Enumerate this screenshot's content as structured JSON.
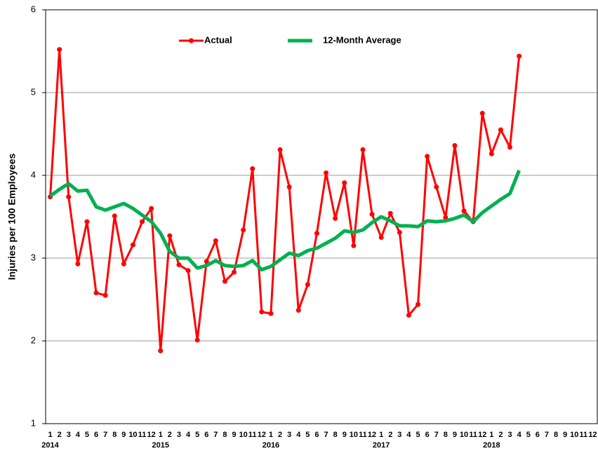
{
  "chart_data": {
    "type": "line",
    "y_label": "Injuries per 100 Employees",
    "categories": [
      "1",
      "2",
      "3",
      "4",
      "5",
      "6",
      "7",
      "8",
      "9",
      "10",
      "11",
      "12",
      "1",
      "2",
      "3",
      "4",
      "5",
      "6",
      "7",
      "8",
      "9",
      "10",
      "11",
      "12",
      "1",
      "2",
      "3",
      "4",
      "5",
      "6",
      "7",
      "8",
      "9",
      "10",
      "11",
      "12",
      "1",
      "2",
      "3",
      "4",
      "5",
      "6",
      "7",
      "8",
      "9",
      "10",
      "11",
      "12",
      "1",
      "2",
      "3",
      "4",
      "5",
      "6",
      "7",
      "8",
      "9",
      "10",
      "11",
      "12"
    ],
    "years": [
      "2014",
      "2015",
      "2016",
      "2017",
      "2018"
    ],
    "series": [
      {
        "name": "Actual",
        "color": "#ff0000",
        "markers": true,
        "values": [
          3.74,
          5.52,
          3.74,
          2.93,
          3.44,
          2.58,
          2.55,
          3.51,
          2.93,
          3.16,
          3.44,
          3.6,
          1.88,
          3.27,
          2.92,
          2.85,
          2.01,
          2.96,
          3.21,
          2.72,
          2.83,
          3.34,
          4.08,
          2.35,
          2.33,
          4.31,
          3.86,
          2.37,
          2.68,
          3.3,
          4.03,
          3.48,
          3.91,
          3.15,
          4.31,
          3.53,
          3.25,
          3.54,
          3.31,
          2.31,
          2.44,
          4.23,
          3.86,
          3.49,
          4.36,
          3.57,
          3.44,
          4.75,
          4.26,
          4.55,
          4.34,
          5.44,
          null,
          null,
          null,
          null,
          null,
          null,
          null,
          null
        ]
      },
      {
        "name": "12-Month Average",
        "color": "#00b050",
        "markers": false,
        "values": [
          3.75,
          3.83,
          3.9,
          3.81,
          3.82,
          3.62,
          3.58,
          3.62,
          3.66,
          3.6,
          3.52,
          3.44,
          3.3,
          3.08,
          3.0,
          3.0,
          2.88,
          2.91,
          2.97,
          2.91,
          2.9,
          2.91,
          2.97,
          2.86,
          2.9,
          2.98,
          3.06,
          3.03,
          3.09,
          3.12,
          3.18,
          3.24,
          3.33,
          3.31,
          3.34,
          3.43,
          3.5,
          3.45,
          3.39,
          3.39,
          3.38,
          3.45,
          3.44,
          3.45,
          3.48,
          3.52,
          3.44,
          3.55,
          3.63,
          3.71,
          3.78,
          4.06,
          null,
          null,
          null,
          null,
          null,
          null,
          null,
          null
        ]
      }
    ],
    "ylim": [
      1,
      6
    ],
    "yticks": [
      1,
      2,
      3,
      4,
      5,
      6
    ],
    "grid": true,
    "legend": "top"
  }
}
